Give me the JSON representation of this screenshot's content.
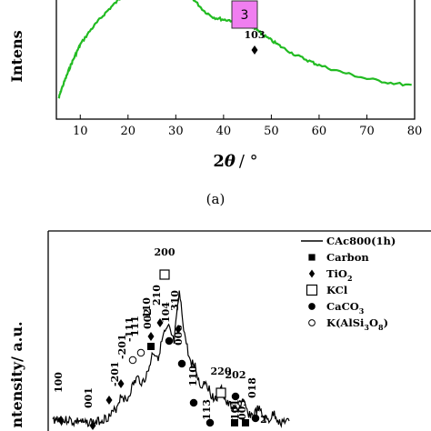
{
  "chart_data": [
    {
      "type": "line",
      "ylabel": "Intens",
      "xlabel_main": "2",
      "xlabel_theta": "θ",
      "xlabel_unit": "/ °",
      "xlim": [
        5,
        80
      ],
      "xticks": [
        "10",
        "20",
        "30",
        "40",
        "50",
        "60",
        "70",
        "80"
      ],
      "panel_label": "(a)",
      "badge": "3",
      "series_color": "#22bb22",
      "annotations": [
        {
          "label": "103",
          "x": 46.5
        }
      ],
      "series": [
        {
          "x": [
            5.5,
            6,
            7,
            8,
            9,
            10,
            12,
            14,
            16,
            18,
            20,
            22,
            24,
            25,
            26,
            27,
            28,
            29,
            30,
            32,
            34,
            36,
            38,
            40,
            42,
            44,
            45,
            46,
            47,
            48,
            50,
            52,
            55,
            58,
            60,
            65,
            70,
            75,
            80
          ],
          "values": [
            20,
            28,
            40,
            52,
            62,
            72,
            85,
            96,
            106,
            115,
            123,
            131,
            139,
            143,
            147,
            149,
            150,
            148,
            140,
            126,
            114,
            104,
            98,
            96,
            95,
            94,
            93,
            90,
            86,
            82,
            76,
            70,
            62,
            56,
            52,
            45,
            39,
            35,
            32
          ]
        }
      ]
    },
    {
      "type": "line",
      "ylabel": "ntensity/ a.u.",
      "series": [
        {
          "name": "CAc800(1h)",
          "x": [
            5,
            6,
            7,
            8,
            9,
            10,
            11,
            12,
            13,
            14,
            15,
            16,
            17,
            18,
            19,
            20,
            21,
            22,
            23,
            24,
            25,
            26,
            27,
            28,
            29,
            30,
            31,
            32,
            33,
            34,
            35,
            36,
            37,
            38,
            39,
            40,
            41,
            42,
            43,
            44,
            45,
            46,
            47,
            48,
            49,
            50
          ],
          "values": [
            12,
            14,
            11,
            13,
            10,
            12,
            9,
            11,
            10,
            12,
            14,
            16,
            22,
            34,
            28,
            40,
            48,
            44,
            52,
            70,
            66,
            84,
            90,
            78,
            120,
            85,
            62,
            58,
            40,
            46,
            34,
            30,
            38,
            26,
            24,
            20,
            28,
            18,
            16,
            22,
            14,
            12,
            18,
            10,
            12,
            9
          ]
        }
      ],
      "legend": [
        {
          "label": "CAc800(1h)",
          "marker": "line"
        },
        {
          "label": "Carbon",
          "marker": "filled-square"
        },
        {
          "label": "TiO",
          "sub": "2",
          "marker": "diamond"
        },
        {
          "label": "KCl",
          "marker": "open-square"
        },
        {
          "label": "CaCO",
          "sub": "3",
          "marker": "filled-circle"
        },
        {
          "label": "K(AlSi",
          "sub": "3",
          "mid": "O",
          "sub2": "8",
          "tail": ")",
          "marker": "open-circle"
        }
      ],
      "peak_labels": [
        {
          "label": "100",
          "x": 0.5,
          "marker": "diamond"
        },
        {
          "label": "001",
          "x": 8.5,
          "marker": "diamond"
        },
        {
          "label": "-201",
          "x": 14.5,
          "marker": "diamond"
        },
        {
          "label": "-111",
          "x": 16,
          "marker": "open-circle"
        },
        {
          "label": "-201",
          "x": 21.5,
          "marker": "diamond"
        },
        {
          "label": "111",
          "x": 23,
          "marker": "open-circle"
        },
        {
          "label": "110",
          "x": 25,
          "marker": "diamond"
        },
        {
          "label": "002",
          "x": 27,
          "marker": "filled-square"
        },
        {
          "label": "210",
          "x": 28.5,
          "marker": "diamond"
        },
        {
          "label": "200",
          "x": 30,
          "marker": "open-square"
        },
        {
          "label": "104",
          "x": 32,
          "marker": "filled-circle"
        },
        {
          "label": "006",
          "x": 33,
          "marker": "filled-circle"
        },
        {
          "label": "310",
          "x": 35,
          "marker": "diamond"
        },
        {
          "label": "110",
          "x": 38,
          "marker": "filled-circle"
        },
        {
          "label": "220",
          "x": 42,
          "marker": "open-square"
        },
        {
          "label": "202",
          "x": 45,
          "marker": "filled-circle"
        },
        {
          "label": "018",
          "x": 49,
          "marker": "filled-circle"
        },
        {
          "label": "113",
          "x": 39,
          "marker": "filled-circle"
        },
        {
          "label": "101",
          "x": 44.5,
          "marker": "filled-square"
        },
        {
          "label": "003",
          "x": 46.5,
          "marker": "filled-square"
        },
        {
          "label": "2",
          "x": 50.5,
          "marker": "none"
        }
      ]
    }
  ]
}
